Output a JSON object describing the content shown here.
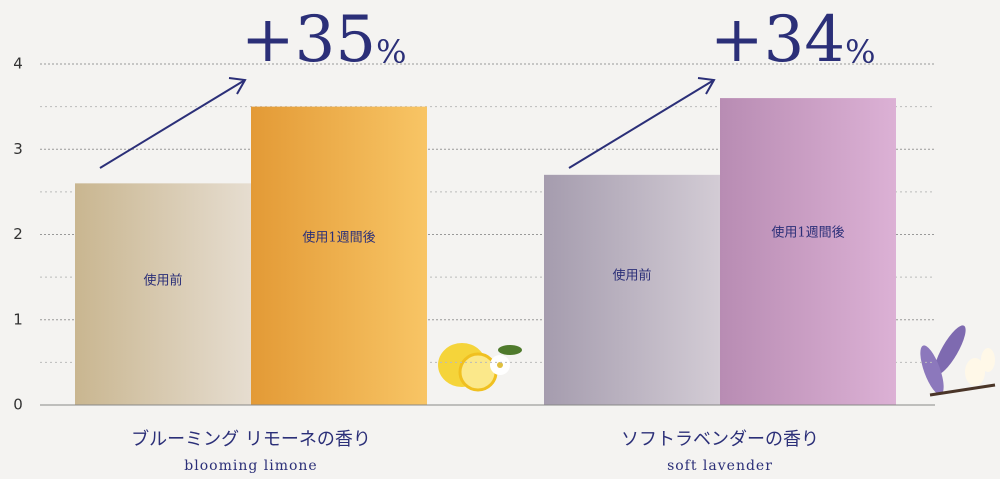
{
  "chart_data": {
    "type": "bar",
    "groups": [
      {
        "name": "ブルーミング リモーネの香り",
        "subtitle": "blooming limone"
      },
      {
        "name": "ソフトラベンダーの香り",
        "subtitle": "soft lavender"
      }
    ],
    "series": [
      {
        "name": "使用前",
        "colors": [
          [
            "#c9b690",
            "#e6ddd0"
          ],
          [
            "#a59cae",
            "#d3ccd5"
          ]
        ],
        "values": [
          2.6,
          2.7
        ]
      },
      {
        "name": "使用1週間後",
        "colors": [
          [
            "#e39a36",
            "#f8c565"
          ],
          [
            "#b88cb3",
            "#dcb1d5"
          ]
        ],
        "values": [
          3.5,
          3.6
        ]
      }
    ],
    "annotations": [
      {
        "label": "+35",
        "unit": "%"
      },
      {
        "label": "+34",
        "unit": "%"
      }
    ],
    "ylim": [
      0,
      4
    ],
    "yticks": [
      0,
      1,
      2,
      3,
      4
    ],
    "minor_yticks": [
      0.5,
      1.5,
      2.5,
      3.5
    ],
    "grid": true
  }
}
